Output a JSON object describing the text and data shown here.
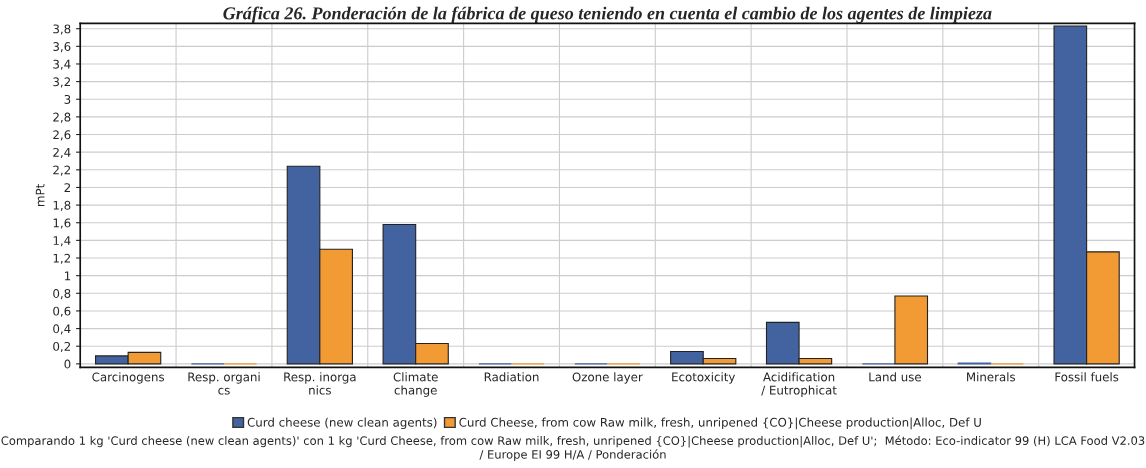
{
  "chart_data": {
    "type": "bar",
    "title": "Gráfica 26. Ponderación de la fábrica de queso teniendo en cuenta el cambio de los agentes de limpieza",
    "ylabel": "mPt",
    "categories": [
      "Carcinogens",
      "Resp. organi\ncs",
      "Resp. inorga\nnics",
      "Climate\nchange",
      "Radiation",
      "Ozone layer",
      "Ecotoxicity",
      "Acidification\n/ Eutrophicat",
      "Land use",
      "Minerals",
      "Fossil fuels"
    ],
    "series": [
      {
        "name": "Curd cheese (new clean agents)",
        "color": "#4263a0",
        "values": [
          0.09,
          0,
          2.24,
          1.58,
          0,
          0,
          0.14,
          0.47,
          0,
          0.01,
          3.83
        ]
      },
      {
        "name": "Curd Cheese, from cow Raw milk, fresh, unripened {CO}|Cheese production|Alloc, Def U",
        "color": "#f29b34",
        "values": [
          0.13,
          0,
          1.3,
          0.23,
          0,
          0,
          0.06,
          0.06,
          0.77,
          0,
          1.27
        ]
      }
    ],
    "ylim": [
      -0.04,
      3.86
    ],
    "yticks": [
      0,
      {
        "value": 0.2,
        "label": "0,2"
      },
      {
        "value": 0.4,
        "label": "0,4"
      },
      {
        "value": 0.6,
        "label": "0,6"
      },
      {
        "value": 0.8,
        "label": "0,8"
      },
      1,
      {
        "value": 1.2,
        "label": "1,2"
      },
      {
        "value": 1.4,
        "label": "1,4"
      },
      {
        "value": 1.6,
        "label": "1,6"
      },
      {
        "value": 1.8,
        "label": "1,8"
      },
      2,
      {
        "value": 2.2,
        "label": "2,2"
      },
      {
        "value": 2.4,
        "label": "2,4"
      },
      {
        "value": 2.6,
        "label": "2,6"
      },
      {
        "value": 2.8,
        "label": "2,8"
      },
      3,
      {
        "value": 3.2,
        "label": "3,2"
      },
      {
        "value": 3.4,
        "label": "3,4"
      },
      {
        "value": 3.6,
        "label": "3,6"
      },
      {
        "value": 3.8,
        "label": "3,8"
      }
    ],
    "grid": true,
    "legend": "bottom",
    "annotations": [
      "Comparando 1 kg 'Curd cheese (new clean agents)' con 1 kg 'Curd Cheese, from cow Raw milk, fresh, unripened {CO}|Cheese production|Alloc, Def U';  Método: Eco-indicator 99 (H) LCA Food V2.03 / Europe EI 99 H/A / Ponderación"
    ]
  }
}
